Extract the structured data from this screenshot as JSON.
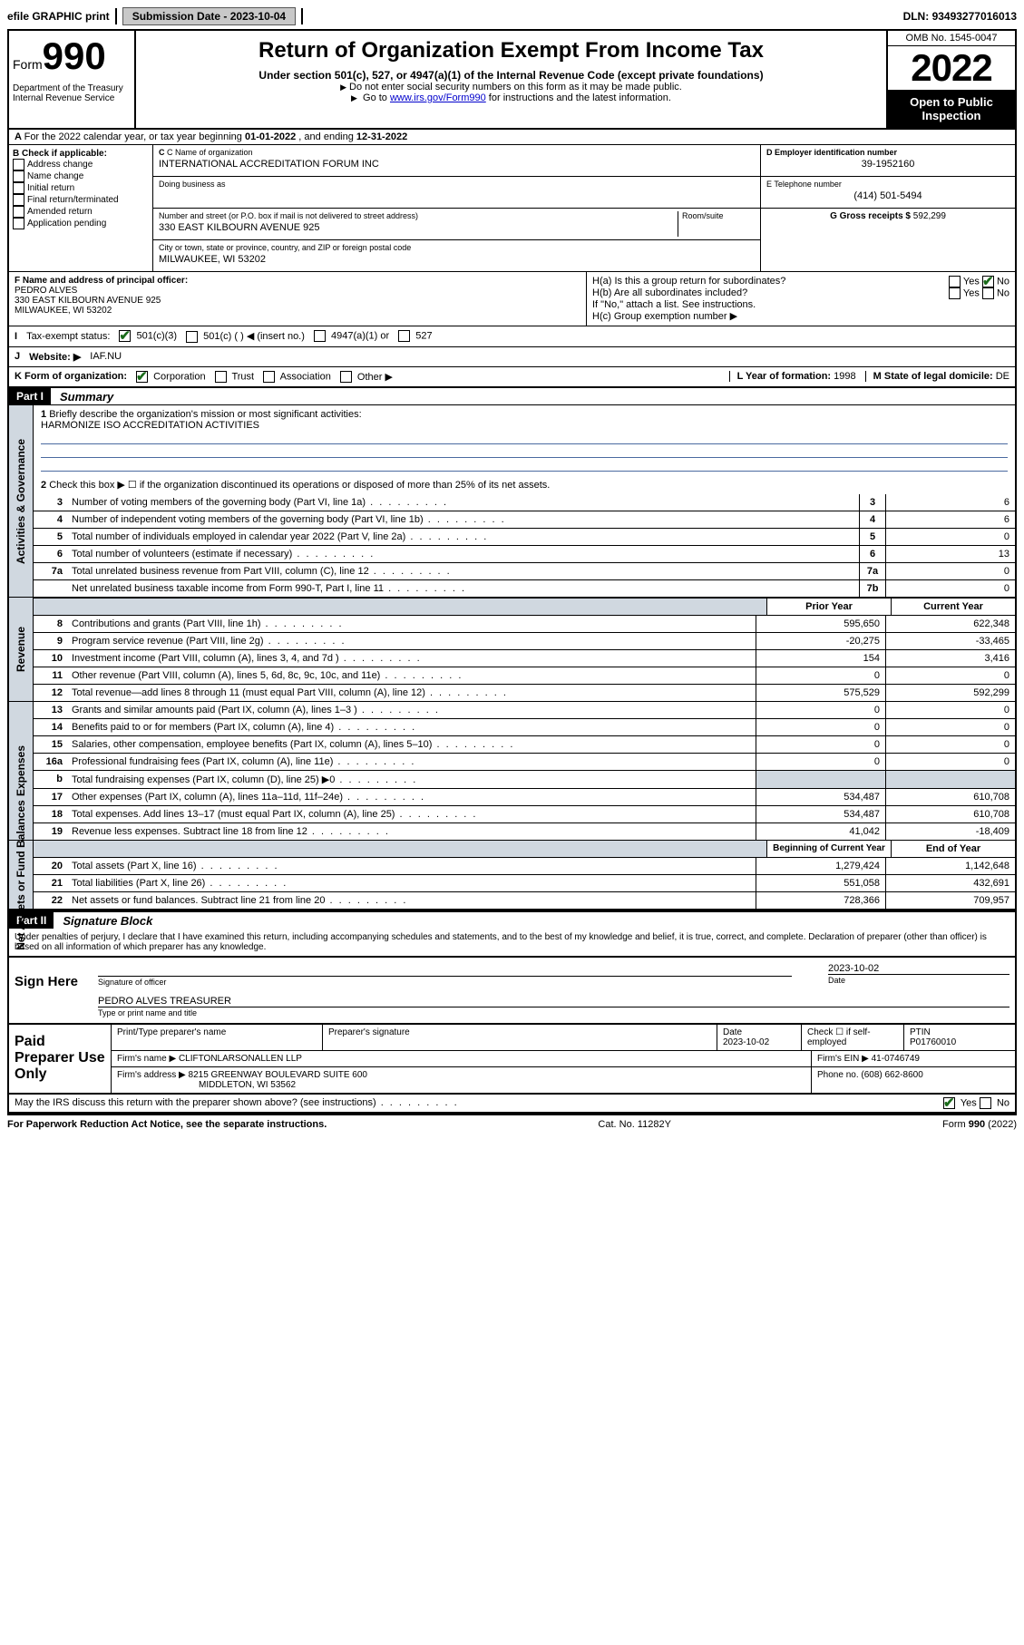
{
  "topbar": {
    "efile": "efile GRAPHIC print",
    "subdate_label": "Submission Date - ",
    "subdate": "2023-10-04",
    "dln_label": "DLN: ",
    "dln": "93493277016013"
  },
  "header": {
    "form_label": "Form",
    "form_num": "990",
    "dept": "Department of the Treasury",
    "irs": "Internal Revenue Service",
    "title": "Return of Organization Exempt From Income Tax",
    "sub1": "Under section 501(c), 527, or 4947(a)(1) of the Internal Revenue Code (except private foundations)",
    "sub2": "Do not enter social security numbers on this form as it may be made public.",
    "sub3_pre": "Go to ",
    "sub3_link": "www.irs.gov/Form990",
    "sub3_post": " for instructions and the latest information.",
    "omb": "OMB No. 1545-0047",
    "year": "2022",
    "open": "Open to Public Inspection"
  },
  "rowA": {
    "text_pre": "For the 2022 calendar year, or tax year beginning ",
    "begin": "01-01-2022",
    "mid": " , and ending ",
    "end": "12-31-2022"
  },
  "B": {
    "label": "B Check if applicable:",
    "opts": [
      "Address change",
      "Name change",
      "Initial return",
      "Final return/terminated",
      "Amended return",
      "Application pending"
    ]
  },
  "C": {
    "name_lbl": "C Name of organization",
    "name": "INTERNATIONAL ACCREDITATION FORUM INC",
    "dba_lbl": "Doing business as",
    "dba": "",
    "addr_lbl": "Number and street (or P.O. box if mail is not delivered to street address)",
    "room_lbl": "Room/suite",
    "addr": "330 EAST KILBOURN AVENUE 925",
    "city_lbl": "City or town, state or province, country, and ZIP or foreign postal code",
    "city": "MILWAUKEE, WI  53202"
  },
  "D": {
    "lbl": "D Employer identification number",
    "val": "39-1952160"
  },
  "E": {
    "lbl": "E Telephone number",
    "val": "(414) 501-5494"
  },
  "G": {
    "lbl": "G Gross receipts $",
    "val": "592,299"
  },
  "F": {
    "lbl": "F  Name and address of principal officer:",
    "name": "PEDRO ALVES",
    "addr1": "330 EAST KILBOURN AVENUE 925",
    "addr2": "MILWAUKEE, WI  53202"
  },
  "H": {
    "a_lbl": "H(a)  Is this a group return for subordinates?",
    "a_yes": "Yes",
    "a_no": "No",
    "b_lbl": "H(b)  Are all subordinates included?",
    "b_yes": "Yes",
    "b_no": "No",
    "b_note": "If \"No,\" attach a list. See instructions.",
    "c_lbl": "H(c)  Group exemption number ▶"
  },
  "I": {
    "lbl": "Tax-exempt status:",
    "o1": "501(c)(3)",
    "o2": "501(c) (  ) ◀ (insert no.)",
    "o3": "4947(a)(1) or",
    "o4": "527"
  },
  "J": {
    "lbl": "Website: ▶",
    "val": "IAF.NU"
  },
  "K": {
    "lbl": "K Form of organization:",
    "o1": "Corporation",
    "o2": "Trust",
    "o3": "Association",
    "o4": "Other ▶"
  },
  "L": {
    "lbl": "L Year of formation: ",
    "val": "1998"
  },
  "M": {
    "lbl": "M State of legal domicile: ",
    "val": "DE"
  },
  "part1": {
    "hdr": "Part I",
    "title": "Summary"
  },
  "summary": {
    "l1_lbl": "Briefly describe the organization's mission or most significant activities:",
    "l1_val": "HARMONIZE ISO ACCREDITATION ACTIVITIES",
    "l2": "Check this box ▶ ☐  if the organization discontinued its operations or disposed of more than 25% of its net assets.",
    "rows_ag": [
      {
        "n": "3",
        "t": "Number of voting members of the governing body (Part VI, line 1a)",
        "box": "3",
        "v": "6"
      },
      {
        "n": "4",
        "t": "Number of independent voting members of the governing body (Part VI, line 1b)",
        "box": "4",
        "v": "6"
      },
      {
        "n": "5",
        "t": "Total number of individuals employed in calendar year 2022 (Part V, line 2a)",
        "box": "5",
        "v": "0"
      },
      {
        "n": "6",
        "t": "Total number of volunteers (estimate if necessary)",
        "box": "6",
        "v": "13"
      },
      {
        "n": "7a",
        "t": "Total unrelated business revenue from Part VIII, column (C), line 12",
        "box": "7a",
        "v": "0"
      },
      {
        "n": "",
        "t": "Net unrelated business taxable income from Form 990-T, Part I, line 11",
        "box": "7b",
        "v": "0"
      }
    ],
    "col_prior": "Prior Year",
    "col_curr": "Current Year",
    "rev": [
      {
        "n": "8",
        "t": "Contributions and grants (Part VIII, line 1h)",
        "p": "595,650",
        "c": "622,348"
      },
      {
        "n": "9",
        "t": "Program service revenue (Part VIII, line 2g)",
        "p": "-20,275",
        "c": "-33,465"
      },
      {
        "n": "10",
        "t": "Investment income (Part VIII, column (A), lines 3, 4, and 7d )",
        "p": "154",
        "c": "3,416"
      },
      {
        "n": "11",
        "t": "Other revenue (Part VIII, column (A), lines 5, 6d, 8c, 9c, 10c, and 11e)",
        "p": "0",
        "c": "0"
      },
      {
        "n": "12",
        "t": "Total revenue—add lines 8 through 11 (must equal Part VIII, column (A), line 12)",
        "p": "575,529",
        "c": "592,299"
      }
    ],
    "exp": [
      {
        "n": "13",
        "t": "Grants and similar amounts paid (Part IX, column (A), lines 1–3 )",
        "p": "0",
        "c": "0"
      },
      {
        "n": "14",
        "t": "Benefits paid to or for members (Part IX, column (A), line 4)",
        "p": "0",
        "c": "0"
      },
      {
        "n": "15",
        "t": "Salaries, other compensation, employee benefits (Part IX, column (A), lines 5–10)",
        "p": "0",
        "c": "0"
      },
      {
        "n": "16a",
        "t": "Professional fundraising fees (Part IX, column (A), line 11e)",
        "p": "0",
        "c": "0"
      },
      {
        "n": "b",
        "t": "Total fundraising expenses (Part IX, column (D), line 25) ▶0",
        "p": "",
        "c": "",
        "shade": true
      },
      {
        "n": "17",
        "t": "Other expenses (Part IX, column (A), lines 11a–11d, 11f–24e)",
        "p": "534,487",
        "c": "610,708"
      },
      {
        "n": "18",
        "t": "Total expenses. Add lines 13–17 (must equal Part IX, column (A), line 25)",
        "p": "534,487",
        "c": "610,708"
      },
      {
        "n": "19",
        "t": "Revenue less expenses. Subtract line 18 from line 12",
        "p": "41,042",
        "c": "-18,409"
      }
    ],
    "col_begin": "Beginning of Current Year",
    "col_end": "End of Year",
    "net": [
      {
        "n": "20",
        "t": "Total assets (Part X, line 16)",
        "p": "1,279,424",
        "c": "1,142,648"
      },
      {
        "n": "21",
        "t": "Total liabilities (Part X, line 26)",
        "p": "551,058",
        "c": "432,691"
      },
      {
        "n": "22",
        "t": "Net assets or fund balances. Subtract line 21 from line 20",
        "p": "728,366",
        "c": "709,957"
      }
    ]
  },
  "vlabels": {
    "ag": "Activities & Governance",
    "rev": "Revenue",
    "exp": "Expenses",
    "net": "Net Assets or Fund Balances"
  },
  "part2": {
    "hdr": "Part II",
    "title": "Signature Block"
  },
  "penal": "Under penalties of perjury, I declare that I have examined this return, including accompanying schedules and statements, and to the best of my knowledge and belief, it is true, correct, and complete. Declaration of preparer (other than officer) is based on all information of which preparer has any knowledge.",
  "sign": {
    "here": "Sign Here",
    "sig_lbl": "Signature of officer",
    "date_lbl": "Date",
    "date": "2023-10-02",
    "name": "PEDRO ALVES TREASURER",
    "name_lbl": "Type or print name and title"
  },
  "paid": {
    "title": "Paid Preparer Use Only",
    "h1": "Print/Type preparer's name",
    "h2": "Preparer's signature",
    "h3": "Date",
    "h3v": "2023-10-02",
    "h4": "Check ☐ if self-employed",
    "h5": "PTIN",
    "h5v": "P01760010",
    "firm_lbl": "Firm's name    ▶",
    "firm": "CLIFTONLARSONALLEN LLP",
    "ein_lbl": "Firm's EIN ▶",
    "ein": "41-0746749",
    "addr_lbl": "Firm's address ▶",
    "addr1": "8215 GREENWAY BOULEVARD SUITE 600",
    "addr2": "MIDDLETON, WI 53562",
    "phone_lbl": "Phone no. ",
    "phone": "(608) 662-8600"
  },
  "discuss": {
    "q": "May the IRS discuss this return with the preparer shown above? (see instructions)",
    "yes": "Yes",
    "no": "No"
  },
  "footer": {
    "left": "For Paperwork Reduction Act Notice, see the separate instructions.",
    "mid": "Cat. No. 11282Y",
    "right_pre": "Form ",
    "right_form": "990",
    "right_post": " (2022)"
  }
}
